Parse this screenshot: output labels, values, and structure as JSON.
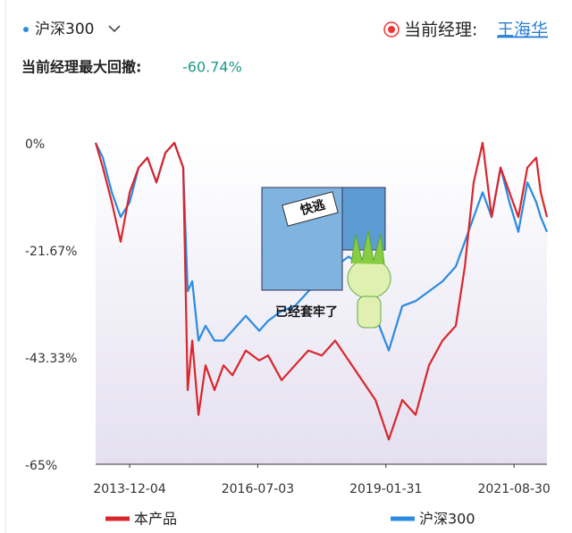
{
  "header": {
    "index": "沪深300",
    "manager_label": "当前经理:",
    "manager": "王海华",
    "drawdown_label": "当前经理最大回撤:",
    "drawdown": "-60.74%"
  },
  "chart_data": {
    "type": "line",
    "x": [
      "2013-03-29",
      "2013-05-21",
      "2013-07-26",
      "2013-09-29",
      "2013-12-04",
      "2014-02-08",
      "2014-04-14",
      "2014-06-19",
      "2014-08-24",
      "2014-10-29",
      "2015-01-02",
      "2015-02-04",
      "2015-03-09",
      "2015-04-24",
      "2015-06-15",
      "2015-08-20",
      "2015-10-25",
      "2015-12-30",
      "2016-04-06",
      "2016-07-14",
      "2016-09-17",
      "2016-12-25",
      "2017-04-02",
      "2017-07-10",
      "2017-10-17",
      "2018-01-23",
      "2018-05-02",
      "2018-08-08",
      "2018-11-15",
      "2019-02-21",
      "2019-05-31",
      "2019-09-06",
      "2019-12-14",
      "2020-03-22",
      "2020-06-28",
      "2020-09-02",
      "2020-11-06",
      "2021-01-11",
      "2021-03-18",
      "2021-05-23",
      "2021-07-27",
      "2021-10-01",
      "2021-12-06",
      "2022-02-09",
      "2022-03-14",
      "2022-04-29"
    ],
    "series": [
      {
        "name": "本产品",
        "color": "#d9262c",
        "values": [
          0,
          -5,
          -12,
          -20,
          -10,
          -5,
          -3,
          -8,
          -2,
          0,
          -5,
          -50,
          -40,
          -55,
          -45,
          -50,
          -45,
          -47,
          -42,
          -44,
          -43,
          -48,
          -45,
          -42,
          -43,
          -40,
          -44,
          -48,
          -52,
          -60,
          -52,
          -55,
          -45,
          -40,
          -37,
          -25,
          -8,
          0,
          -15,
          -5,
          -10,
          -15,
          -5,
          -3,
          -10,
          -15
        ]
      },
      {
        "name": "沪深300",
        "color": "#2b8be0",
        "values": [
          0,
          -3,
          -10,
          -15,
          -12,
          -5,
          -3,
          -8,
          -2,
          0,
          -5,
          -30,
          -28,
          -40,
          -37,
          -40,
          -40,
          -38,
          -35,
          -38,
          -36,
          -34,
          -33,
          -30,
          -28,
          -25,
          -23,
          -25,
          -35,
          -42,
          -33,
          -32,
          -30,
          -28,
          -25,
          -20,
          -15,
          -10,
          -15,
          -5,
          -12,
          -18,
          -8,
          -12,
          -15,
          -18
        ]
      }
    ],
    "xlim": [
      "2013-03-29",
      "2022-04-29"
    ],
    "xticks": [
      "2013-12-04",
      "2016-07-03",
      "2019-01-31",
      "2021-08-30"
    ],
    "ylim": [
      -65,
      0
    ],
    "yticks": [
      {
        "value": 0,
        "label": "0%"
      },
      {
        "value": -21.67,
        "label": "-21.67%"
      },
      {
        "value": -43.33,
        "label": "-43.33%"
      },
      {
        "value": -65,
        "label": "-65%"
      }
    ],
    "annotations": [
      "快逃",
      "已经套牢了"
    ]
  }
}
